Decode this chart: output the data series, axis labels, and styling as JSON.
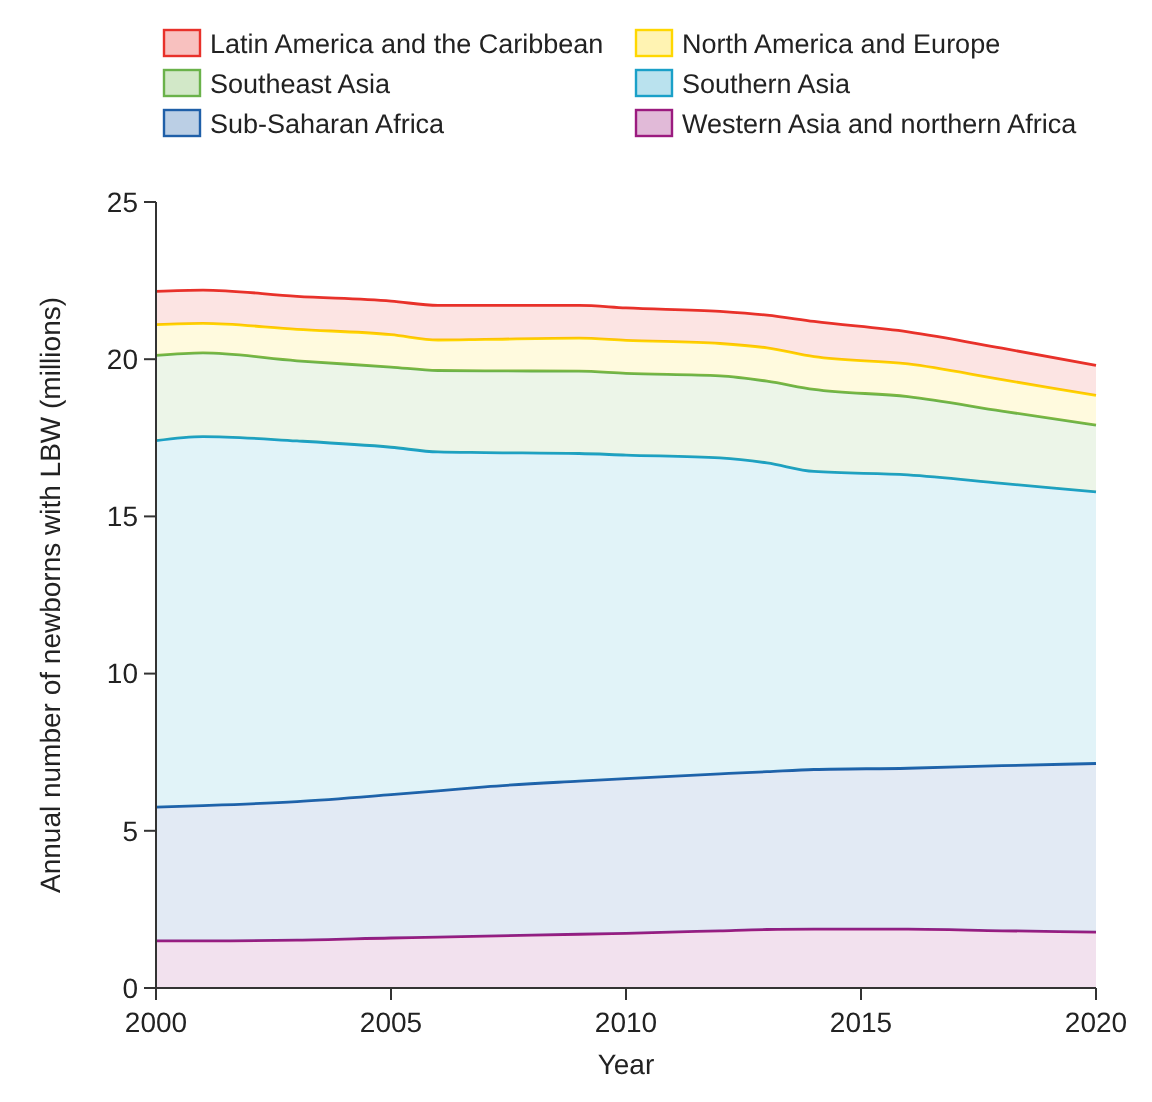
{
  "chart_data": {
    "type": "area",
    "stacked": true,
    "xlabel": "Year",
    "ylabel": "Annual number of newborns with LBW (millions)",
    "x": [
      2000,
      2001,
      2003,
      2005,
      2006,
      2007,
      2009,
      2010,
      2012,
      2013,
      2014,
      2016,
      2018,
      2020
    ],
    "series": [
      {
        "name": "Western Asia and northern Africa",
        "color": "#9b1b7f",
        "values": [
          1.5,
          1.5,
          1.52,
          1.59,
          1.62,
          1.65,
          1.71,
          1.74,
          1.82,
          1.86,
          1.87,
          1.87,
          1.82,
          1.78
        ]
      },
      {
        "name": "Sub-Saharan Africa",
        "color": "#1f5fa8",
        "values": [
          4.25,
          4.3,
          4.41,
          4.56,
          4.65,
          4.75,
          4.87,
          4.92,
          4.99,
          5.02,
          5.08,
          5.12,
          5.25,
          5.36
        ]
      },
      {
        "name": "Southern Asia",
        "color": "#1aa0c8",
        "values": [
          11.66,
          11.74,
          11.47,
          11.05,
          10.78,
          10.63,
          10.42,
          10.29,
          10.05,
          9.82,
          9.48,
          9.33,
          8.98,
          8.64
        ]
      },
      {
        "name": "Southeast Asia",
        "color": "#6ab24a",
        "values": [
          2.71,
          2.66,
          2.55,
          2.55,
          2.59,
          2.6,
          2.62,
          2.6,
          2.61,
          2.6,
          2.61,
          2.49,
          2.3,
          2.12
        ]
      },
      {
        "name": "North America and Europe",
        "color": "#ffd700",
        "values": [
          0.98,
          0.94,
          1.0,
          1.03,
          0.97,
          1.0,
          1.05,
          1.05,
          1.03,
          1.06,
          1.04,
          1.04,
          1.0,
          0.95
        ]
      },
      {
        "name": "Latin America and the Caribbean",
        "color": "#e8312a",
        "values": [
          1.06,
          1.06,
          1.05,
          1.07,
          1.1,
          1.08,
          1.04,
          1.03,
          1.02,
          1.04,
          1.12,
          1.02,
          1.0,
          0.95
        ]
      }
    ],
    "xlim": [
      2000,
      2020
    ],
    "xticks": [
      2000,
      2005,
      2010,
      2015,
      2020
    ],
    "ylim": [
      0,
      25
    ],
    "yticks": [
      0,
      5,
      10,
      15,
      20,
      25
    ],
    "legend": "top",
    "grid": false
  }
}
